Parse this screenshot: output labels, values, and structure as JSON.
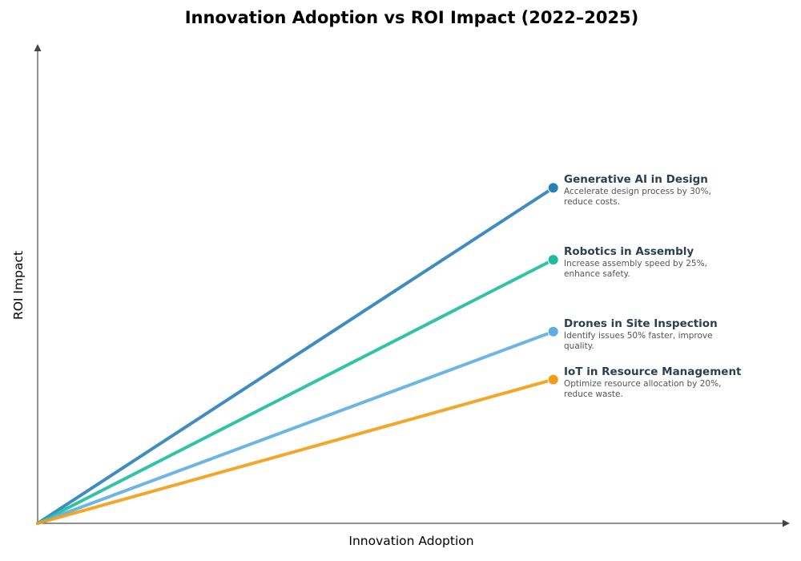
{
  "chart_data": {
    "type": "line",
    "title": "Innovation Adoption vs ROI Impact (2022–2025)",
    "xlabel": "Innovation Adoption",
    "ylabel": "ROI Impact",
    "xlim": [
      0,
      1.02
    ],
    "ylim": [
      0,
      1.0
    ],
    "grid": false,
    "legend": "none",
    "series": [
      {
        "name": "Generative AI in Design",
        "description": "Accelerate design process by 30%, reduce costs.",
        "x": [
          0,
          0.7
        ],
        "y": [
          0,
          0.7
        ],
        "color": "#2980b9"
      },
      {
        "name": "Robotics in Assembly",
        "description": "Increase assembly speed by 25%, enhance safety.",
        "x": [
          0,
          0.7
        ],
        "y": [
          0,
          0.55
        ],
        "color": "#1abc9c"
      },
      {
        "name": "Drones in Site Inspection",
        "description": "Identify issues 50% faster, improve quality.",
        "x": [
          0,
          0.7
        ],
        "y": [
          0,
          0.4
        ],
        "color": "#5dade2"
      },
      {
        "name": "IoT in Resource Management",
        "description": "Optimize resource allocation by 20%, reduce waste.",
        "x": [
          0,
          0.7
        ],
        "y": [
          0,
          0.3
        ],
        "color": "#f39c12"
      }
    ]
  }
}
